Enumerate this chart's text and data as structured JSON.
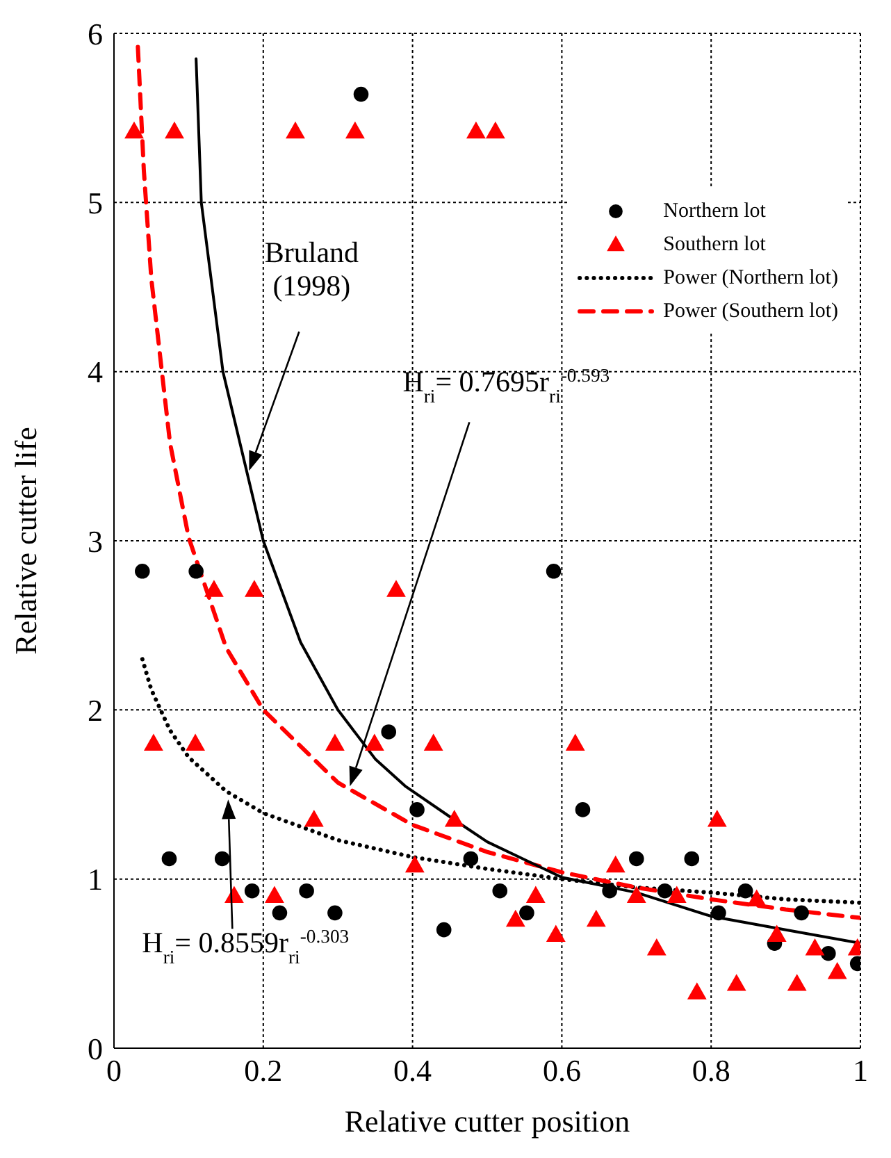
{
  "chart_data": {
    "type": "scatter",
    "xlabel": "Relative cutter position",
    "ylabel": "Relative cutter life",
    "xlim": [
      0,
      1
    ],
    "ylim": [
      0,
      6
    ],
    "xticks": [
      0,
      0.2,
      0.4,
      0.6,
      0.8,
      1
    ],
    "yticks": [
      0,
      1,
      2,
      3,
      4,
      5,
      6
    ],
    "grid": true,
    "legend": "right",
    "series": [
      {
        "name": "Northern lot",
        "marker": "circle",
        "color": "#000000",
        "x": [
          0.038,
          0.11,
          0.074,
          0.145,
          0.185,
          0.222,
          0.258,
          0.296,
          0.331,
          0.368,
          0.406,
          0.442,
          0.478,
          0.517,
          0.553,
          0.589,
          0.628,
          0.664,
          0.7,
          0.738,
          0.774,
          0.81,
          0.846,
          0.885,
          0.921,
          0.957,
          0.996
        ],
        "values": [
          2.82,
          2.82,
          1.12,
          1.12,
          0.93,
          0.8,
          0.93,
          0.8,
          5.64,
          1.87,
          1.41,
          0.7,
          1.12,
          0.93,
          0.8,
          2.82,
          1.41,
          0.93,
          1.12,
          0.93,
          1.12,
          0.8,
          0.93,
          0.62,
          0.8,
          0.56,
          0.5
        ]
      },
      {
        "name": "Southern lot",
        "marker": "triangle",
        "color": "#ff0000",
        "x": [
          0.027,
          0.081,
          0.243,
          0.323,
          0.485,
          0.511,
          0.134,
          0.188,
          0.378,
          0.053,
          0.109,
          0.296,
          0.349,
          0.428,
          0.618,
          0.268,
          0.403,
          0.161,
          0.215,
          0.456,
          0.672,
          0.565,
          0.538,
          0.592,
          0.646,
          0.7,
          0.727,
          0.754,
          0.808,
          0.781,
          0.834,
          0.861,
          0.888,
          0.915,
          0.939,
          0.969,
          0.996
        ],
        "values": [
          5.42,
          5.42,
          5.42,
          5.42,
          5.42,
          5.42,
          2.71,
          2.71,
          2.71,
          1.8,
          1.8,
          1.8,
          1.8,
          1.8,
          1.8,
          1.35,
          1.08,
          0.9,
          0.9,
          1.35,
          1.08,
          0.9,
          0.76,
          0.67,
          0.76,
          0.9,
          0.59,
          0.9,
          1.35,
          0.33,
          0.38,
          0.88,
          0.67,
          0.38,
          0.59,
          0.45,
          0.59
        ]
      },
      {
        "name": "Power (Northern lot)",
        "type": "line",
        "marker": "none",
        "line_style": "dotted",
        "color": "#000000",
        "x": [
          0.038,
          0.05,
          0.075,
          0.1,
          0.15,
          0.2,
          0.3,
          0.4,
          0.5,
          0.6,
          0.7,
          0.8,
          0.9,
          1
        ],
        "values": [
          2.3,
          2.12,
          1.88,
          1.72,
          1.52,
          1.39,
          1.23,
          1.13,
          1.06,
          1.0,
          0.95,
          0.92,
          0.88,
          0.86
        ]
      },
      {
        "name": "Power (Southern lot)",
        "type": "line",
        "marker": "none",
        "line_style": "dashed",
        "color": "#ff0000",
        "x": [
          0.032,
          0.04,
          0.05,
          0.075,
          0.1,
          0.15,
          0.2,
          0.3,
          0.4,
          0.5,
          0.6,
          0.7,
          0.8,
          0.9,
          1
        ],
        "values": [
          5.92,
          5.19,
          4.55,
          3.58,
          3.02,
          2.37,
          2.0,
          1.57,
          1.32,
          1.16,
          1.04,
          0.95,
          0.88,
          0.82,
          0.77
        ]
      },
      {
        "type": "line",
        "marker": "none",
        "line_style": "solid",
        "color": "#000000",
        "x": [
          0.11,
          0.117,
          0.146,
          0.2,
          0.25,
          0.3,
          0.35,
          0.39,
          0.456,
          0.5,
          0.6,
          0.7,
          0.8,
          0.9,
          1
        ],
        "values": [
          5.85,
          5.0,
          4.0,
          3.0,
          2.4,
          2.0,
          1.71,
          1.55,
          1.35,
          1.22,
          1.01,
          0.92,
          0.78,
          0.7,
          0.62
        ]
      }
    ],
    "annotations": [
      "Bruland\n(1998)",
      "H$_{ri}$= 0.7695r$_{ri}$$^{-0.593}$",
      "H$_{ri}$= 0.8559r$_{ri}$$^{-0.303}$"
    ]
  }
}
